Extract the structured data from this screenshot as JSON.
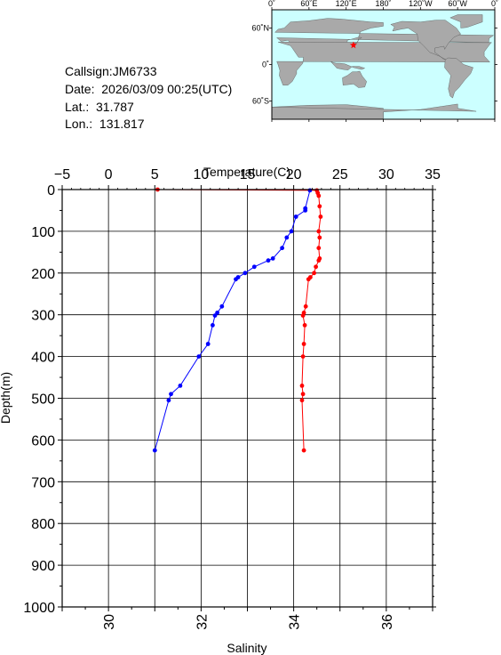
{
  "info": {
    "callsign": "Callsign:JM6733",
    "date": "Date:  2026/03/09 00:25(UTC)",
    "lat": "Lat.:  31.787",
    "lon": "Lon.:  131.817"
  },
  "map": {
    "lon_labels": [
      "0˚",
      "60˚E",
      "120˚E",
      "180˚",
      "120˚W",
      "60˚W",
      "0˚"
    ],
    "lat_labels": [
      "60˚N",
      "0˚",
      "60˚S"
    ],
    "station": {
      "lat": 31.787,
      "lon": 131.817
    },
    "ocean_color": "#ccffff",
    "land_color": "#a9a9a9",
    "marker_color": "#ff0000"
  },
  "chart_data": {
    "type": "line",
    "depth_label": "Depth(m)",
    "temperature_label": "Temperature(C)",
    "salinity_label": "Salinity",
    "depth_range": [
      0,
      1000
    ],
    "depth_ticks": [
      0,
      100,
      200,
      300,
      400,
      500,
      600,
      700,
      800,
      900,
      1000
    ],
    "temperature_range": [
      -5,
      35
    ],
    "temperature_ticks": [
      -5,
      0,
      5,
      10,
      15,
      20,
      25,
      30,
      35
    ],
    "salinity_range": [
      29,
      37
    ],
    "salinity_ticks": [
      30,
      32,
      34,
      36
    ],
    "grid": true,
    "series": [
      {
        "color": "#ff0000",
        "axis": "temperature",
        "points": [
          [
            5.3,
            0
          ],
          [
            22.5,
            2
          ],
          [
            22.6,
            8
          ],
          [
            22.7,
            15
          ],
          [
            22.8,
            40
          ],
          [
            22.9,
            65
          ],
          [
            22.7,
            100
          ],
          [
            22.8,
            115
          ],
          [
            22.7,
            140
          ],
          [
            22.8,
            165
          ],
          [
            22.7,
            170
          ],
          [
            22.4,
            185
          ],
          [
            22.2,
            200
          ],
          [
            21.8,
            210
          ],
          [
            21.6,
            215
          ],
          [
            21.3,
            280
          ],
          [
            21.1,
            295
          ],
          [
            21.0,
            302
          ],
          [
            21.2,
            325
          ],
          [
            21.1,
            370
          ],
          [
            21.0,
            400
          ],
          [
            20.9,
            470
          ],
          [
            21.0,
            490
          ],
          [
            20.9,
            505
          ],
          [
            21.1,
            625
          ]
        ]
      },
      {
        "color": "#0000ff",
        "axis": "salinity",
        "points": [
          [
            34.35,
            2
          ],
          [
            34.25,
            45
          ],
          [
            34.25,
            50
          ],
          [
            34.05,
            65
          ],
          [
            33.95,
            100
          ],
          [
            33.85,
            115
          ],
          [
            33.75,
            140
          ],
          [
            33.55,
            165
          ],
          [
            33.45,
            170
          ],
          [
            33.15,
            185
          ],
          [
            32.95,
            200
          ],
          [
            32.8,
            210
          ],
          [
            32.75,
            215
          ],
          [
            32.45,
            280
          ],
          [
            32.35,
            295
          ],
          [
            32.3,
            302
          ],
          [
            32.25,
            325
          ],
          [
            32.15,
            370
          ],
          [
            31.95,
            400
          ],
          [
            31.55,
            470
          ],
          [
            31.35,
            490
          ],
          [
            31.3,
            505
          ],
          [
            31.0,
            625
          ]
        ]
      }
    ]
  }
}
